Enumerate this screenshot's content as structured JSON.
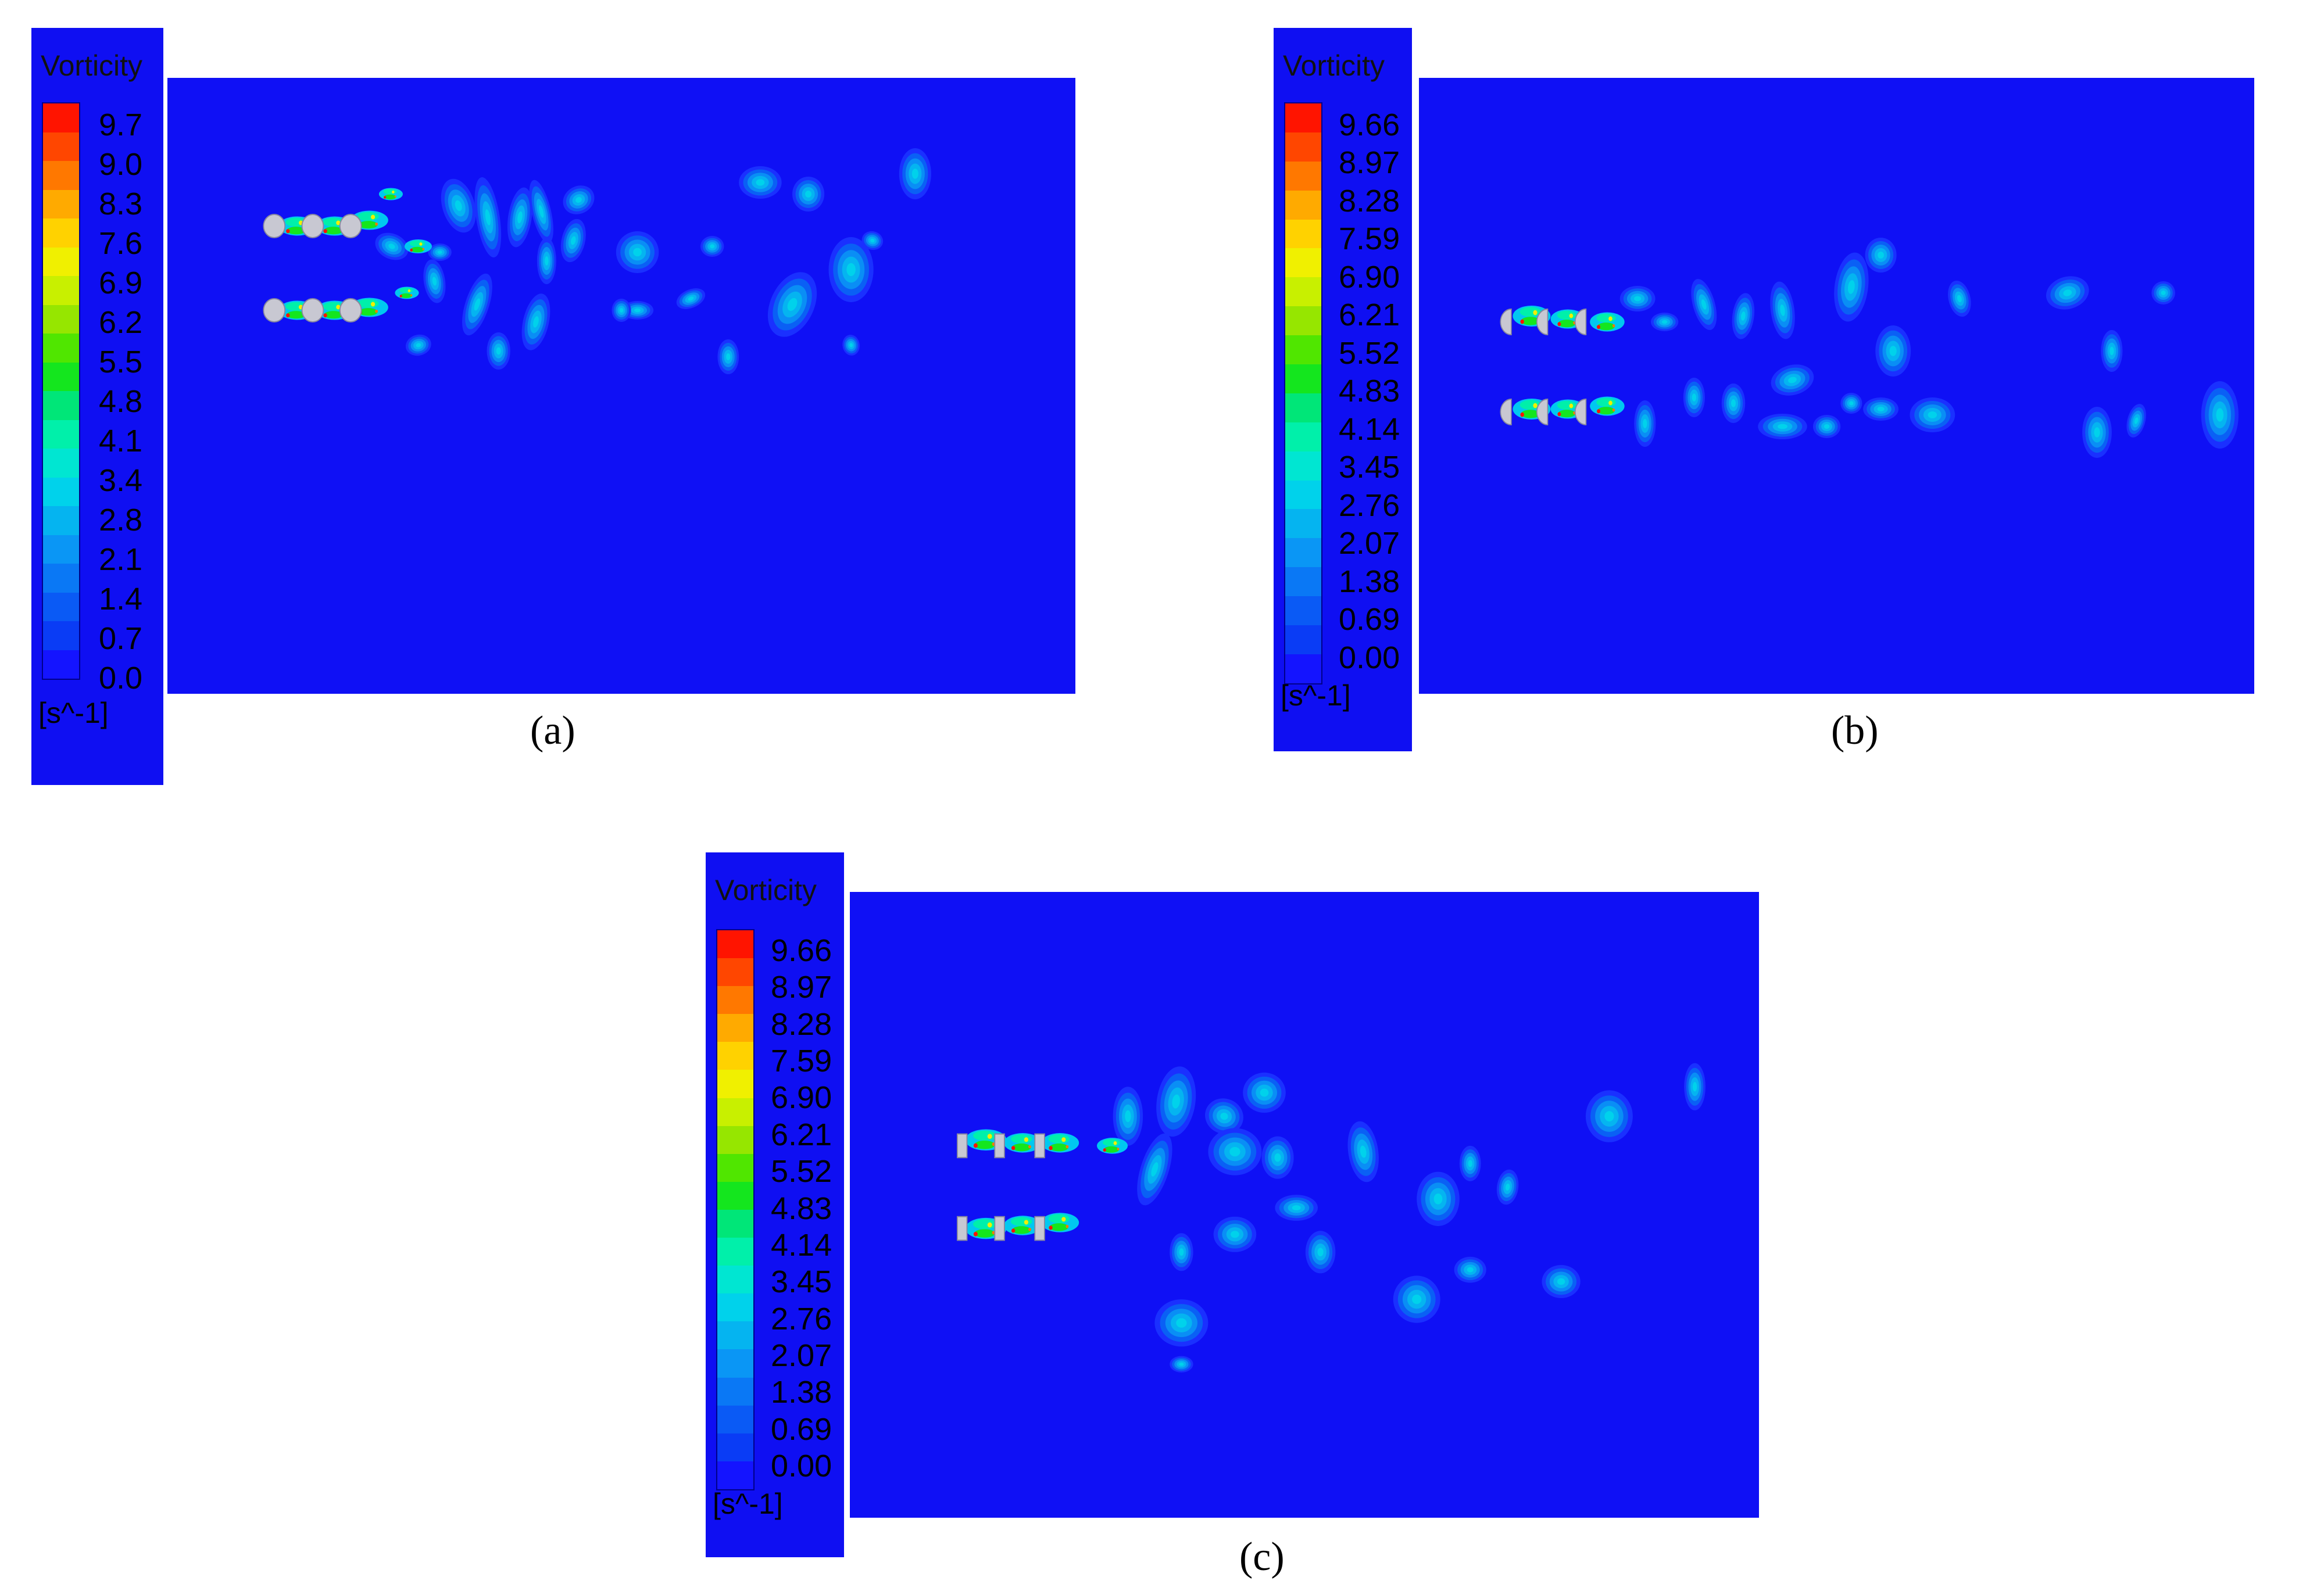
{
  "colors": {
    "background": "#0f10f5",
    "scale": [
      "#1414ff",
      "#0a3cf5",
      "#0a5af5",
      "#0a78f5",
      "#0a96f5",
      "#05b4f0",
      "#00d2eb",
      "#00e6d2",
      "#00f0aa",
      "#00e678",
      "#14e61e",
      "#50e600",
      "#96e600",
      "#c8f000",
      "#f0f000",
      "#ffd200",
      "#ffaa00",
      "#ff7800",
      "#ff4600",
      "#ff1400"
    ],
    "cylinder": "#c8c8d2"
  },
  "panels": [
    {
      "id": "a",
      "caption": "(a)",
      "legend_title": "Vorticity",
      "legend_labels": [
        "9.7",
        "9.0",
        "8.3",
        "7.6",
        "6.9",
        "6.2",
        "5.5",
        "4.8",
        "4.1",
        "3.4",
        "2.8",
        "2.1",
        "1.4",
        "0.7",
        "0.0"
      ],
      "legend_units": "[s^-1]",
      "cylinder_shape": "circle"
    },
    {
      "id": "b",
      "caption": "(b)",
      "legend_title": "Vorticity",
      "legend_labels": [
        "9.66",
        "8.97",
        "8.28",
        "7.59",
        "6.90",
        "6.21",
        "5.52",
        "4.83",
        "4.14",
        "3.45",
        "2.76",
        "2.07",
        "1.38",
        "0.69",
        "0.00"
      ],
      "legend_units": "[s^-1]",
      "cylinder_shape": "half-circle"
    },
    {
      "id": "c",
      "caption": "(c)",
      "legend_title": "Vorticity",
      "legend_labels": [
        "9.66",
        "8.97",
        "8.28",
        "7.59",
        "6.90",
        "6.21",
        "5.52",
        "4.83",
        "4.14",
        "3.45",
        "2.76",
        "2.07",
        "1.38",
        "0.69",
        "0.00"
      ],
      "legend_units": "[s^-1]",
      "cylinder_shape": "half-square"
    }
  ]
}
